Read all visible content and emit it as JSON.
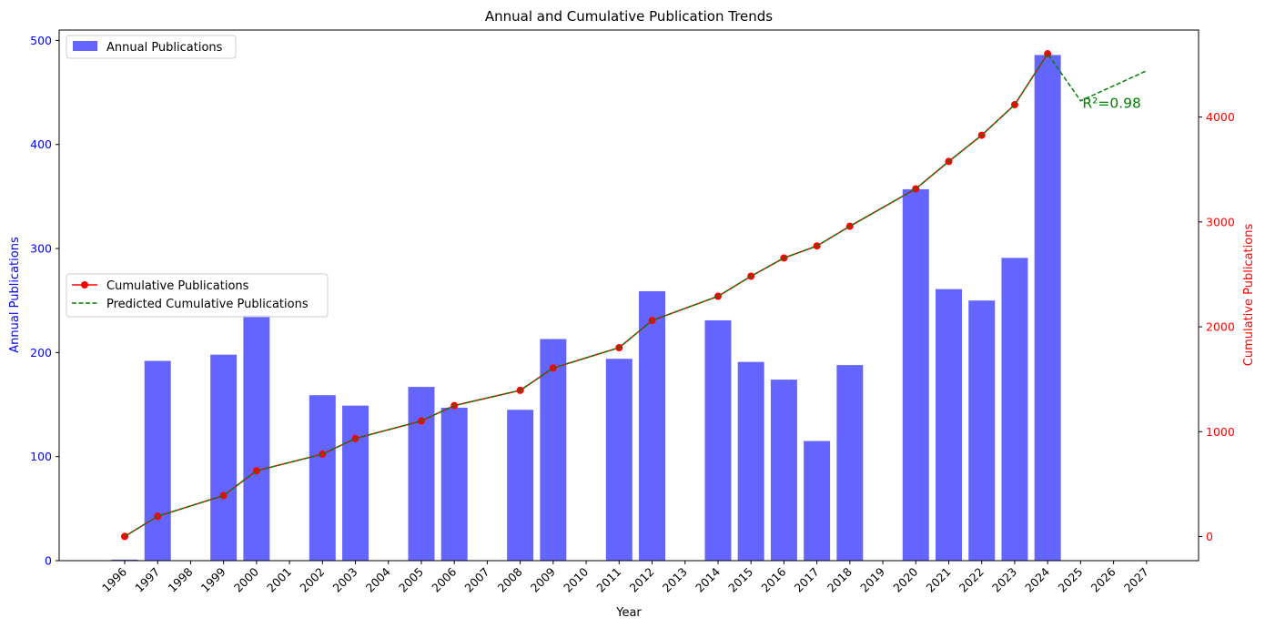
{
  "chart_data": {
    "type": "bar",
    "title": "Annual and Cumulative Publication Trends",
    "xlabel": "Year",
    "ylabel_left": "Annual Publications",
    "ylabel_right": "Cumulative Publications",
    "x_ticks": [
      "1996",
      "1997",
      "1998",
      "1999",
      "2000",
      "2001",
      "2002",
      "2003",
      "2004",
      "2005",
      "2006",
      "2007",
      "2008",
      "2009",
      "2010",
      "2011",
      "2012",
      "2013",
      "2014",
      "2015",
      "2016",
      "2017",
      "2018",
      "2019",
      "2020",
      "2021",
      "2022",
      "2023",
      "2024",
      "2025",
      "2026",
      "2027"
    ],
    "ylim_left": [
      0,
      510
    ],
    "yticks_left": [
      0,
      100,
      200,
      300,
      400,
      500
    ],
    "ylim_right": [
      -230,
      4830
    ],
    "yticks_right": [
      0,
      1000,
      2000,
      3000,
      4000
    ],
    "annual": {
      "name": "Annual Publications",
      "color": "#6464ff",
      "years": [
        1996,
        1997,
        1999,
        2000,
        2002,
        2003,
        2005,
        2006,
        2008,
        2009,
        2011,
        2012,
        2014,
        2015,
        2016,
        2017,
        2018,
        2020,
        2021,
        2022,
        2023,
        2024
      ],
      "values": [
        1,
        192,
        198,
        236,
        159,
        149,
        167,
        147,
        145,
        213,
        194,
        259,
        231,
        191,
        174,
        115,
        188,
        357,
        261,
        250,
        291,
        486
      ]
    },
    "cumulative": {
      "name": "Cumulative Publications",
      "color": "#ff0000",
      "years": [
        1996,
        1997,
        1999,
        2000,
        2002,
        2003,
        2005,
        2006,
        2008,
        2009,
        2011,
        2012,
        2014,
        2015,
        2016,
        2017,
        2018,
        2020,
        2021,
        2022,
        2023,
        2024
      ],
      "values": [
        1,
        193,
        391,
        627,
        786,
        935,
        1102,
        1249,
        1394,
        1607,
        1801,
        2060,
        2291,
        2482,
        2656,
        2771,
        2959,
        3316,
        3577,
        3827,
        4118,
        4604
      ]
    },
    "predicted": {
      "name": "Predicted Cumulative Publications",
      "color": "#008000",
      "years": [
        1996,
        1997,
        1999,
        2000,
        2002,
        2003,
        2005,
        2006,
        2008,
        2009,
        2011,
        2012,
        2014,
        2015,
        2016,
        2017,
        2018,
        2020,
        2021,
        2022,
        2023,
        2024,
        2025,
        2026,
        2027
      ],
      "values": [
        1,
        193,
        391,
        627,
        786,
        935,
        1102,
        1249,
        1394,
        1607,
        1801,
        2060,
        2291,
        2482,
        2656,
        2771,
        2959,
        3316,
        3577,
        3827,
        4118,
        4604,
        4155,
        4298,
        4441
      ]
    },
    "annotation": {
      "text": "R²=0.98",
      "year": 2025,
      "value": 4130,
      "color": "#008000"
    },
    "legend_top": "top-left",
    "legend_mid": "center-left",
    "grid": false
  }
}
